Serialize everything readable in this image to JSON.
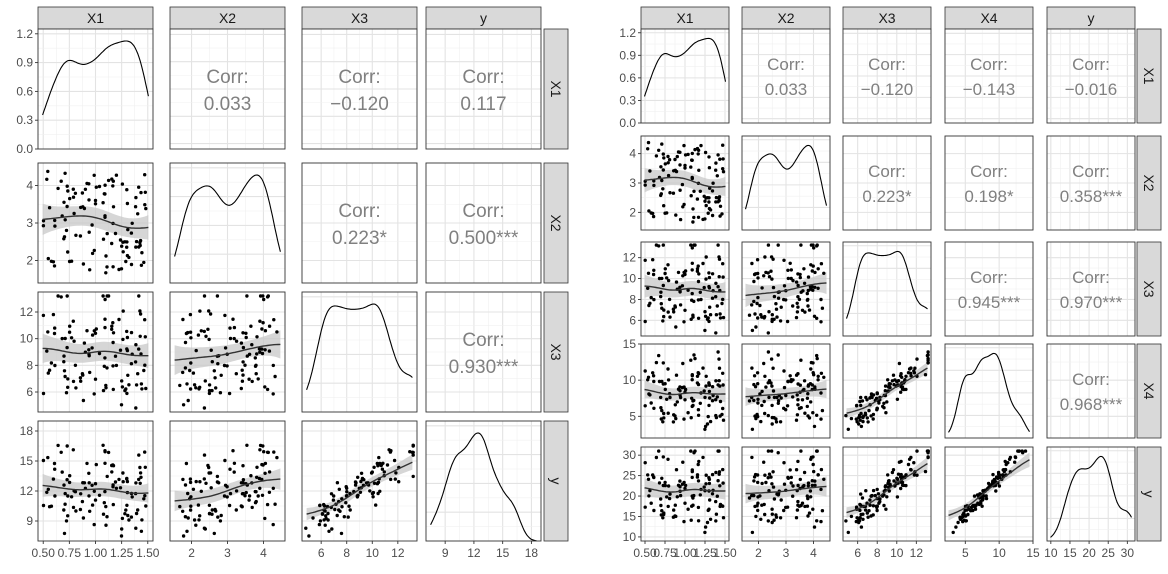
{
  "chart_data": [
    {
      "type": "scatter",
      "plot_kind": "scatterplot-matrix",
      "variables": [
        "X1",
        "X2",
        "X3",
        "y"
      ],
      "ranges": {
        "X1": [
          0.45,
          1.55
        ],
        "X2": [
          1.4,
          4.6
        ],
        "X3": [
          4.5,
          13.5
        ],
        "y": [
          7.0,
          19.0
        ]
      },
      "ticks": {
        "X1": [
          0.5,
          0.75,
          1.0,
          1.25,
          1.5
        ],
        "X2": [
          2,
          3,
          4
        ],
        "X3": [
          6,
          8,
          10,
          12
        ],
        "y": [
          9,
          12,
          15,
          18
        ]
      },
      "x_tick_labels": {
        "X1": [
          "0.50",
          "0.75",
          "1.00",
          "1.25",
          "1.50"
        ],
        "X2": [
          "2",
          "3",
          "4"
        ],
        "X3": [
          "6",
          "8",
          "10",
          "12"
        ],
        "y": [
          "9",
          "12",
          "15",
          "18"
        ]
      },
      "density_ticks": [
        0.0,
        0.3,
        0.6,
        0.9,
        1.2
      ],
      "density_tick_labels": [
        "0.0",
        "0.3",
        "0.6",
        "0.9",
        "1.2"
      ],
      "density_range": [
        0,
        1.25
      ],
      "correlations": [
        {
          "row": "X1",
          "col": "X2",
          "label": "Corr:",
          "value": "0.033"
        },
        {
          "row": "X1",
          "col": "X3",
          "label": "Corr:",
          "value": "−0.120"
        },
        {
          "row": "X1",
          "col": "y",
          "label": "Corr:",
          "value": "0.117"
        },
        {
          "row": "X2",
          "col": "X3",
          "label": "Corr:",
          "value": "0.223*"
        },
        {
          "row": "X2",
          "col": "y",
          "label": "Corr:",
          "value": "0.500***"
        },
        {
          "row": "X3",
          "col": "y",
          "label": "Corr:",
          "value": "0.930***"
        }
      ],
      "grid": true,
      "colors": {
        "points": "#000000",
        "smooth": "#333333",
        "band": "#c8c8c8",
        "strip": "#d9d9d9",
        "corr_text": "#808080"
      }
    },
    {
      "type": "scatter",
      "plot_kind": "scatterplot-matrix",
      "variables": [
        "X1",
        "X2",
        "X3",
        "X4",
        "y"
      ],
      "ranges": {
        "X1": [
          0.45,
          1.55
        ],
        "X2": [
          1.4,
          4.6
        ],
        "X3": [
          4.5,
          13.5
        ],
        "X4": [
          2.0,
          15.0
        ],
        "y": [
          9.0,
          32.0
        ]
      },
      "ticks": {
        "X1": [
          0.5,
          0.75,
          1.0,
          1.25,
          1.5
        ],
        "X2": [
          2,
          3,
          4
        ],
        "X3": [
          6,
          8,
          10,
          12
        ],
        "X4": [
          5,
          10,
          15
        ],
        "y": [
          10,
          15,
          20,
          25,
          30
        ]
      },
      "x_tick_labels": {
        "X1": [
          "0.50",
          "0.75",
          "1.00",
          "1.25",
          "1.50"
        ],
        "X2": [
          "2",
          "3",
          "4"
        ],
        "X3": [
          "6",
          "8",
          "10",
          "12"
        ],
        "X4": [
          "5",
          "10",
          "15"
        ],
        "y": [
          "10",
          "15",
          "20",
          "25",
          "30"
        ]
      },
      "density_ticks": [
        0.0,
        0.3,
        0.6,
        0.9,
        1.2
      ],
      "density_tick_labels": [
        "0.0",
        "0.3",
        "0.6",
        "0.9",
        "1.2"
      ],
      "density_range": [
        0,
        1.25
      ],
      "correlations": [
        {
          "row": "X1",
          "col": "X2",
          "label": "Corr:",
          "value": "0.033"
        },
        {
          "row": "X1",
          "col": "X3",
          "label": "Corr:",
          "value": "−0.120"
        },
        {
          "row": "X1",
          "col": "X4",
          "label": "Corr:",
          "value": "−0.143"
        },
        {
          "row": "X1",
          "col": "y",
          "label": "Corr:",
          "value": "−0.016"
        },
        {
          "row": "X2",
          "col": "X3",
          "label": "Corr:",
          "value": "0.223*"
        },
        {
          "row": "X2",
          "col": "X4",
          "label": "Corr:",
          "value": "0.198*"
        },
        {
          "row": "X2",
          "col": "y",
          "label": "Corr:",
          "value": "0.358***"
        },
        {
          "row": "X3",
          "col": "X4",
          "label": "Corr:",
          "value": "0.945***"
        },
        {
          "row": "X3",
          "col": "y",
          "label": "Corr:",
          "value": "0.970***"
        },
        {
          "row": "X4",
          "col": "y",
          "label": "Corr:",
          "value": "0.968***"
        }
      ],
      "grid": true,
      "colors": {
        "points": "#000000",
        "smooth": "#333333",
        "band": "#c8c8c8",
        "strip": "#d9d9d9",
        "corr_text": "#808080"
      }
    }
  ]
}
